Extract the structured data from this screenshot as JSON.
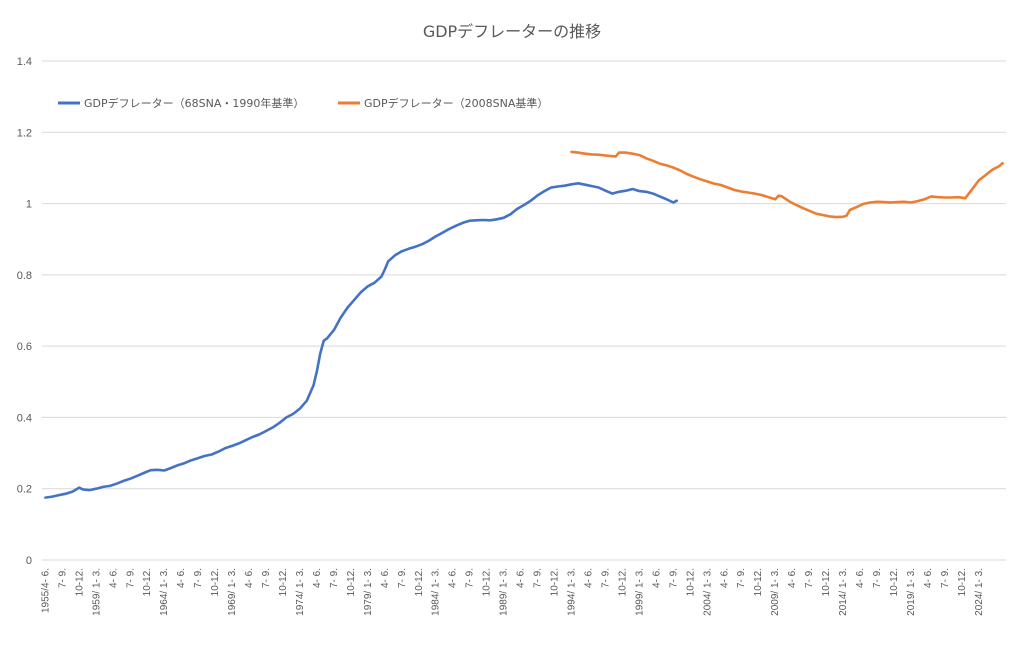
{
  "chart_data": {
    "type": "line",
    "title": "GDPデフレーターの推移",
    "ylim": [
      0,
      1.4
    ],
    "yticks": [
      "0",
      "0.2",
      "0.4",
      "0.6",
      "0.8",
      "1",
      "1.2",
      "1.4"
    ],
    "ytick_values": [
      0,
      0.2,
      0.4,
      0.6,
      0.8,
      1.0,
      1.2,
      1.4
    ],
    "grid": true,
    "legend_position": "top-left",
    "x_range": [
      "1955/4-6",
      "2025/10-12"
    ],
    "xtick_labels": [
      {
        "label": "1955/4- 6.",
        "x": 1955.25
      },
      {
        "label": "7- 9.",
        "x": 1956.5
      },
      {
        "label": "10-12.",
        "x": 1957.75
      },
      {
        "label": "1959/ 1- 3.",
        "x": 1959.0
      },
      {
        "label": "4- 6.",
        "x": 1960.25
      },
      {
        "label": "7- 9.",
        "x": 1961.5
      },
      {
        "label": "10-12.",
        "x": 1962.75
      },
      {
        "label": "1964/ 1- 3.",
        "x": 1964.0
      },
      {
        "label": "4- 6.",
        "x": 1965.25
      },
      {
        "label": "7- 9.",
        "x": 1966.5
      },
      {
        "label": "10-12.",
        "x": 1967.75
      },
      {
        "label": "1969/ 1- 3.",
        "x": 1969.0
      },
      {
        "label": "4- 6.",
        "x": 1970.25
      },
      {
        "label": "7- 9.",
        "x": 1971.5
      },
      {
        "label": "10-12.",
        "x": 1972.75
      },
      {
        "label": "1974/ 1- 3.",
        "x": 1974.0
      },
      {
        "label": "4- 6.",
        "x": 1975.25
      },
      {
        "label": "7- 9.",
        "x": 1976.5
      },
      {
        "label": "10-12.",
        "x": 1977.75
      },
      {
        "label": "1979/ 1- 3.",
        "x": 1979.0
      },
      {
        "label": "4- 6.",
        "x": 1980.25
      },
      {
        "label": "7- 9.",
        "x": 1981.5
      },
      {
        "label": "10-12.",
        "x": 1982.75
      },
      {
        "label": "1984/ 1- 3.",
        "x": 1984.0
      },
      {
        "label": "4- 6.",
        "x": 1985.25
      },
      {
        "label": "7- 9.",
        "x": 1986.5
      },
      {
        "label": "10-12.",
        "x": 1987.75
      },
      {
        "label": "1989/ 1- 3.",
        "x": 1989.0
      },
      {
        "label": "4- 6.",
        "x": 1990.25
      },
      {
        "label": "7- 9.",
        "x": 1991.5
      },
      {
        "label": "10-12.",
        "x": 1992.75
      },
      {
        "label": "1994/ 1- 3.",
        "x": 1994.0
      },
      {
        "label": "4- 6.",
        "x": 1995.25
      },
      {
        "label": "7- 9.",
        "x": 1996.5
      },
      {
        "label": "10-12.",
        "x": 1997.75
      },
      {
        "label": "1999/ 1- 3.",
        "x": 1999.0
      },
      {
        "label": "4- 6.",
        "x": 2000.25
      },
      {
        "label": "7- 9.",
        "x": 2001.5
      },
      {
        "label": "10-12.",
        "x": 2002.75
      },
      {
        "label": "2004/ 1- 3.",
        "x": 2004.0
      },
      {
        "label": "4- 6.",
        "x": 2005.25
      },
      {
        "label": "7- 9.",
        "x": 2006.5
      },
      {
        "label": "10-12.",
        "x": 2007.75
      },
      {
        "label": "2009/ 1- 3.",
        "x": 2009.0
      },
      {
        "label": "4- 6.",
        "x": 2010.25
      },
      {
        "label": "7- 9.",
        "x": 2011.5
      },
      {
        "label": "10-12.",
        "x": 2012.75
      },
      {
        "label": "2014/ 1- 3.",
        "x": 2014.0
      },
      {
        "label": "4- 6.",
        "x": 2015.25
      },
      {
        "label": "7- 9.",
        "x": 2016.5
      },
      {
        "label": "10-12.",
        "x": 2017.75
      },
      {
        "label": "2019/ 1- 3.",
        "x": 2019.0
      },
      {
        "label": "4- 6.",
        "x": 2020.25
      },
      {
        "label": "7- 9.",
        "x": 2021.5
      },
      {
        "label": "10-12.",
        "x": 2022.75
      },
      {
        "label": "2024/ 1- 3.",
        "x": 2024.0
      }
    ],
    "series": [
      {
        "name": "GDPデフレーター（68SNA・1990年基準）",
        "color": "#4472C4",
        "points": [
          [
            1955.25,
            0.175
          ],
          [
            1955.75,
            0.178
          ],
          [
            1956.25,
            0.182
          ],
          [
            1956.75,
            0.186
          ],
          [
            1957.25,
            0.192
          ],
          [
            1957.75,
            0.203
          ],
          [
            1958.0,
            0.198
          ],
          [
            1958.5,
            0.196
          ],
          [
            1959.0,
            0.2
          ],
          [
            1959.5,
            0.205
          ],
          [
            1960.0,
            0.208
          ],
          [
            1960.5,
            0.214
          ],
          [
            1961.0,
            0.222
          ],
          [
            1961.5,
            0.228
          ],
          [
            1962.0,
            0.236
          ],
          [
            1962.5,
            0.244
          ],
          [
            1963.0,
            0.252
          ],
          [
            1963.5,
            0.253
          ],
          [
            1964.0,
            0.251
          ],
          [
            1964.5,
            0.258
          ],
          [
            1965.0,
            0.266
          ],
          [
            1965.5,
            0.272
          ],
          [
            1966.0,
            0.28
          ],
          [
            1966.5,
            0.286
          ],
          [
            1967.0,
            0.292
          ],
          [
            1967.5,
            0.296
          ],
          [
            1968.0,
            0.304
          ],
          [
            1968.5,
            0.314
          ],
          [
            1969.0,
            0.32
          ],
          [
            1969.5,
            0.327
          ],
          [
            1970.0,
            0.336
          ],
          [
            1970.5,
            0.345
          ],
          [
            1971.0,
            0.352
          ],
          [
            1971.5,
            0.362
          ],
          [
            1972.0,
            0.372
          ],
          [
            1972.5,
            0.385
          ],
          [
            1973.0,
            0.4
          ],
          [
            1973.5,
            0.41
          ],
          [
            1974.0,
            0.425
          ],
          [
            1974.5,
            0.447
          ],
          [
            1975.0,
            0.49
          ],
          [
            1975.25,
            0.53
          ],
          [
            1975.5,
            0.58
          ],
          [
            1975.75,
            0.615
          ],
          [
            1976.0,
            0.622
          ],
          [
            1976.5,
            0.645
          ],
          [
            1977.0,
            0.68
          ],
          [
            1977.5,
            0.708
          ],
          [
            1978.0,
            0.73
          ],
          [
            1978.5,
            0.752
          ],
          [
            1979.0,
            0.768
          ],
          [
            1979.5,
            0.778
          ],
          [
            1980.0,
            0.795
          ],
          [
            1980.25,
            0.815
          ],
          [
            1980.5,
            0.838
          ],
          [
            1981.0,
            0.855
          ],
          [
            1981.5,
            0.866
          ],
          [
            1982.0,
            0.873
          ],
          [
            1982.5,
            0.879
          ],
          [
            1983.0,
            0.886
          ],
          [
            1983.5,
            0.896
          ],
          [
            1984.0,
            0.908
          ],
          [
            1984.5,
            0.918
          ],
          [
            1985.0,
            0.929
          ],
          [
            1985.5,
            0.938
          ],
          [
            1986.0,
            0.946
          ],
          [
            1986.5,
            0.952
          ],
          [
            1987.0,
            0.953
          ],
          [
            1987.5,
            0.954
          ],
          [
            1988.0,
            0.953
          ],
          [
            1988.5,
            0.956
          ],
          [
            1989.0,
            0.96
          ],
          [
            1989.5,
            0.97
          ],
          [
            1990.0,
            0.985
          ],
          [
            1990.5,
            0.996
          ],
          [
            1991.0,
            1.008
          ],
          [
            1991.5,
            1.023
          ],
          [
            1992.0,
            1.035
          ],
          [
            1992.5,
            1.045
          ],
          [
            1993.0,
            1.048
          ],
          [
            1993.5,
            1.05
          ],
          [
            1994.0,
            1.054
          ],
          [
            1994.5,
            1.057
          ],
          [
            1995.0,
            1.053
          ],
          [
            1995.5,
            1.049
          ],
          [
            1996.0,
            1.045
          ],
          [
            1996.5,
            1.036
          ],
          [
            1997.0,
            1.028
          ],
          [
            1997.5,
            1.033
          ],
          [
            1998.0,
            1.036
          ],
          [
            1998.5,
            1.041
          ],
          [
            1999.0,
            1.035
          ],
          [
            1999.5,
            1.033
          ],
          [
            2000.0,
            1.028
          ],
          [
            2000.5,
            1.02
          ],
          [
            2001.0,
            1.012
          ],
          [
            2001.5,
            1.003
          ],
          [
            2001.75,
            1.008
          ]
        ]
      },
      {
        "name": "GDPデフレーター（2008SNA基準）",
        "color": "#ED7D31",
        "points": [
          [
            1994.0,
            1.145
          ],
          [
            1994.5,
            1.143
          ],
          [
            1995.0,
            1.14
          ],
          [
            1995.5,
            1.138
          ],
          [
            1996.0,
            1.137
          ],
          [
            1996.5,
            1.135
          ],
          [
            1997.0,
            1.133
          ],
          [
            1997.25,
            1.132
          ],
          [
            1997.5,
            1.143
          ],
          [
            1998.0,
            1.143
          ],
          [
            1998.5,
            1.14
          ],
          [
            1999.0,
            1.136
          ],
          [
            1999.5,
            1.127
          ],
          [
            2000.0,
            1.12
          ],
          [
            2000.5,
            1.112
          ],
          [
            2001.0,
            1.107
          ],
          [
            2001.5,
            1.101
          ],
          [
            2002.0,
            1.093
          ],
          [
            2002.5,
            1.083
          ],
          [
            2003.0,
            1.075
          ],
          [
            2003.5,
            1.068
          ],
          [
            2004.0,
            1.062
          ],
          [
            2004.5,
            1.056
          ],
          [
            2005.0,
            1.052
          ],
          [
            2005.5,
            1.045
          ],
          [
            2006.0,
            1.038
          ],
          [
            2006.5,
            1.034
          ],
          [
            2007.0,
            1.031
          ],
          [
            2007.5,
            1.028
          ],
          [
            2008.0,
            1.024
          ],
          [
            2008.5,
            1.018
          ],
          [
            2009.0,
            1.012
          ],
          [
            2009.25,
            1.022
          ],
          [
            2009.5,
            1.02
          ],
          [
            2010.0,
            1.007
          ],
          [
            2010.5,
            0.997
          ],
          [
            2011.0,
            0.988
          ],
          [
            2011.5,
            0.98
          ],
          [
            2012.0,
            0.972
          ],
          [
            2012.5,
            0.968
          ],
          [
            2013.0,
            0.964
          ],
          [
            2013.5,
            0.962
          ],
          [
            2014.0,
            0.963
          ],
          [
            2014.25,
            0.966
          ],
          [
            2014.5,
            0.982
          ],
          [
            2015.0,
            0.99
          ],
          [
            2015.5,
            0.999
          ],
          [
            2016.0,
            1.003
          ],
          [
            2016.5,
            1.005
          ],
          [
            2017.0,
            1.004
          ],
          [
            2017.5,
            1.003
          ],
          [
            2018.0,
            1.004
          ],
          [
            2018.5,
            1.005
          ],
          [
            2019.0,
            1.003
          ],
          [
            2019.5,
            1.007
          ],
          [
            2020.0,
            1.012
          ],
          [
            2020.5,
            1.02
          ],
          [
            2021.0,
            1.018
          ],
          [
            2021.5,
            1.017
          ],
          [
            2022.0,
            1.017
          ],
          [
            2022.5,
            1.018
          ],
          [
            2023.0,
            1.015
          ],
          [
            2023.5,
            1.04
          ],
          [
            2024.0,
            1.065
          ],
          [
            2024.5,
            1.08
          ],
          [
            2025.0,
            1.095
          ],
          [
            2025.5,
            1.105
          ],
          [
            2025.75,
            1.113
          ]
        ]
      }
    ]
  }
}
